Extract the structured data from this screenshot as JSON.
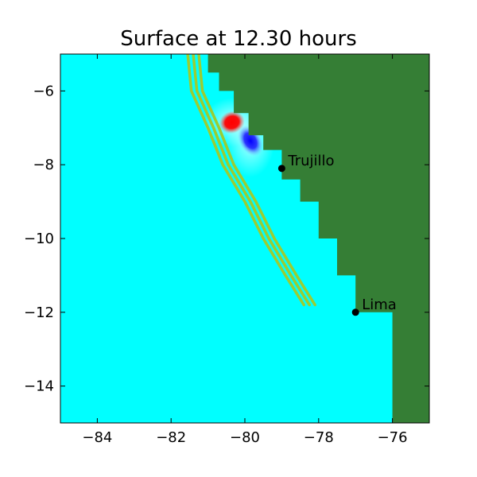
{
  "title": "Surface at 12.30 hours",
  "axes": {
    "xlim": [
      -85,
      -75
    ],
    "ylim": [
      -15,
      -5
    ],
    "xticks": [
      -84,
      -82,
      -80,
      -78,
      -76
    ],
    "yticks": [
      -6,
      -8,
      -10,
      -12,
      -14
    ],
    "xtick_labels": [
      "−84",
      "−82",
      "−80",
      "−78",
      "−76"
    ],
    "ytick_labels": [
      "−6",
      "−8",
      "−10",
      "−12",
      "−14"
    ]
  },
  "colors": {
    "ocean": "#00ffff",
    "land": "#357e35",
    "contour": "#9acd32",
    "positive_anomaly": "#ff0000",
    "negative_anomaly": "#0000ff"
  },
  "cities": [
    {
      "name": "Trujillo",
      "lon": -79.0,
      "lat": -8.1
    },
    {
      "name": "Lima",
      "lon": -77.0,
      "lat": -12.0
    }
  ],
  "coastline": [
    [
      -81.0,
      -5.0
    ],
    [
      -81.0,
      -5.5
    ],
    [
      -80.7,
      -5.5
    ],
    [
      -80.7,
      -6.0
    ],
    [
      -80.3,
      -6.0
    ],
    [
      -80.3,
      -6.6
    ],
    [
      -79.9,
      -6.6
    ],
    [
      -79.9,
      -7.2
    ],
    [
      -79.5,
      -7.2
    ],
    [
      -79.5,
      -7.6
    ],
    [
      -79.0,
      -7.6
    ],
    [
      -79.0,
      -8.4
    ],
    [
      -78.5,
      -8.4
    ],
    [
      -78.5,
      -9.0
    ],
    [
      -78.0,
      -9.0
    ],
    [
      -78.0,
      -10.0
    ],
    [
      -77.5,
      -10.0
    ],
    [
      -77.5,
      -11.0
    ],
    [
      -77.0,
      -11.0
    ],
    [
      -77.0,
      -12.0
    ],
    [
      -76.0,
      -12.0
    ],
    [
      -76.0,
      -15.0
    ]
  ],
  "contours": [
    [
      [
        -81.55,
        -5.0
      ],
      [
        -81.45,
        -6.0
      ],
      [
        -81.0,
        -7.0
      ],
      [
        -80.6,
        -8.0
      ],
      [
        -80.0,
        -9.0
      ],
      [
        -79.5,
        -10.0
      ],
      [
        -78.9,
        -11.0
      ],
      [
        -78.4,
        -11.8
      ]
    ],
    [
      [
        -81.4,
        -5.0
      ],
      [
        -81.3,
        -6.0
      ],
      [
        -80.85,
        -7.0
      ],
      [
        -80.45,
        -8.0
      ],
      [
        -79.85,
        -9.0
      ],
      [
        -79.35,
        -10.0
      ],
      [
        -78.75,
        -11.0
      ],
      [
        -78.25,
        -11.8
      ]
    ],
    [
      [
        -81.25,
        -5.0
      ],
      [
        -81.15,
        -6.0
      ],
      [
        -80.7,
        -7.0
      ],
      [
        -80.3,
        -8.0
      ],
      [
        -79.7,
        -9.0
      ],
      [
        -79.2,
        -10.0
      ],
      [
        -78.6,
        -11.0
      ],
      [
        -78.1,
        -11.8
      ]
    ]
  ],
  "anomalies": [
    {
      "type": "positive",
      "lon": -80.35,
      "lat": -6.85,
      "rx": 0.35,
      "ry": 0.3
    },
    {
      "type": "negative",
      "lon": -79.85,
      "lat": -7.35,
      "rx": 0.3,
      "ry": 0.45
    }
  ]
}
